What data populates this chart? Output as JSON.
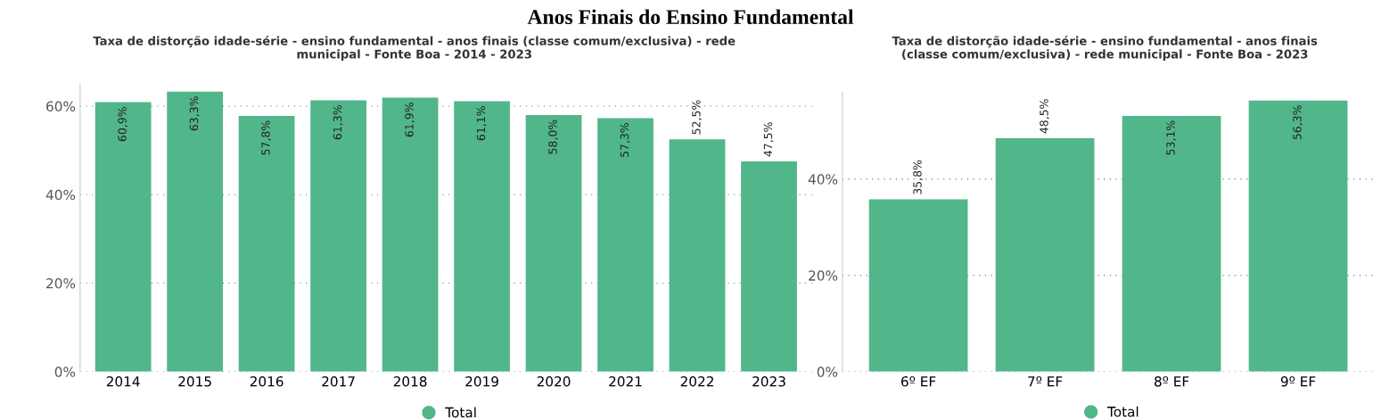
{
  "chart_data": [
    {
      "type": "bar",
      "title": "Anos Finais do Ensino Fundamental",
      "subtitle": "Taxa de distorção idade-série - ensino fundamental - anos finais (classe comum/exclusiva) - rede municipal - Fonte Boa - 2014 - 2023",
      "categories": [
        "2014",
        "2015",
        "2016",
        "2017",
        "2018",
        "2019",
        "2020",
        "2021",
        "2022",
        "2023"
      ],
      "series": [
        {
          "name": "Total",
          "color": "#52b68b",
          "values": [
            60.9,
            63.3,
            57.8,
            61.3,
            61.9,
            61.1,
            58.0,
            57.3,
            52.5,
            47.5
          ]
        }
      ],
      "value_labels": [
        "60,9%",
        "63,3%",
        "57,8%",
        "61,3%",
        "61,9%",
        "61,1%",
        "58,0%",
        "57,3%",
        "52,5%",
        "47,5%"
      ],
      "ylim": [
        0,
        65
      ],
      "yticks": [
        {
          "value": 0,
          "label": "0%"
        },
        {
          "value": 20,
          "label": "20%"
        },
        {
          "value": 40,
          "label": "40%"
        },
        {
          "value": 60,
          "label": "60%"
        }
      ],
      "grid": "y",
      "legend": "bottom",
      "marker": "circle"
    },
    {
      "type": "bar",
      "subtitle": "Taxa de distorção idade-série - ensino fundamental - anos finais (classe comum/exclusiva) - rede municipal - Fonte Boa - 2023",
      "categories": [
        "6º EF",
        "7º EF",
        "8º EF",
        "9º EF"
      ],
      "series": [
        {
          "name": "Total",
          "color": "#52b68b",
          "values": [
            35.8,
            48.5,
            53.1,
            56.3
          ]
        }
      ],
      "value_labels": [
        "35,8%",
        "48,5%",
        "53,1%",
        "56,3%"
      ],
      "ylim": [
        0,
        58
      ],
      "yticks": [
        {
          "value": 0,
          "label": "0%"
        },
        {
          "value": 20,
          "label": "20%"
        },
        {
          "value": 40,
          "label": "40%"
        }
      ],
      "grid": "y",
      "legend": "bottom",
      "marker": "circle"
    }
  ]
}
